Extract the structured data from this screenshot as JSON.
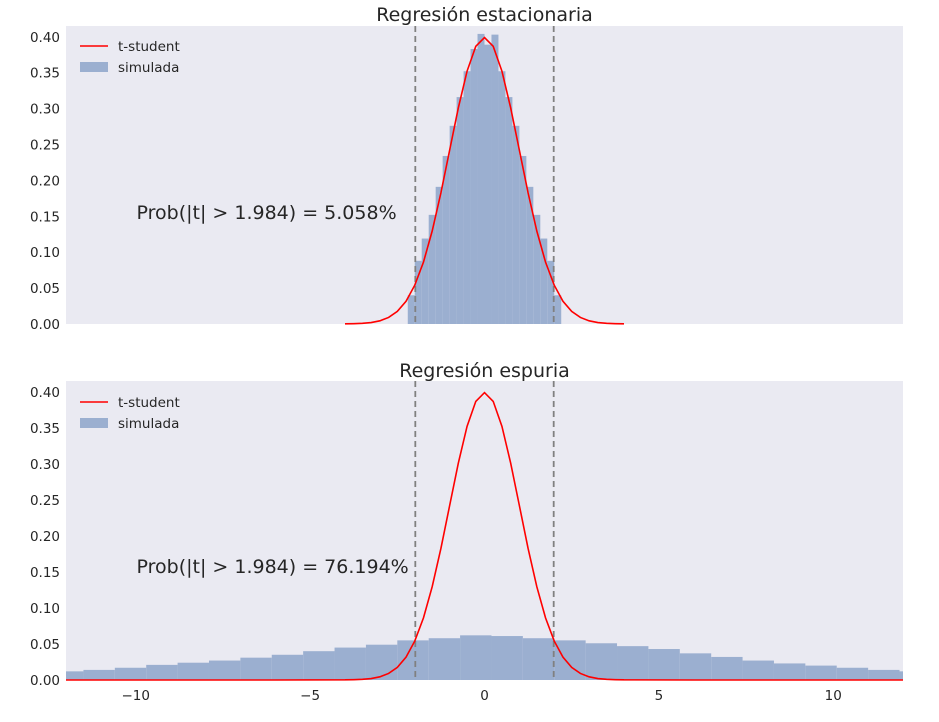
{
  "colors": {
    "axes_bg": "#eaeaf2",
    "hist": "#9bafd0",
    "t_student": "#ff0000",
    "critical_lines": "#808080"
  },
  "chart_data": [
    {
      "type": "histogram",
      "title": "Regresión estacionaria",
      "xlim": [
        -12,
        12
      ],
      "ylim": [
        0,
        0.415
      ],
      "yticks": [
        "0.00",
        "0.05",
        "0.10",
        "0.15",
        "0.20",
        "0.25",
        "0.30",
        "0.35",
        "0.40"
      ],
      "show_xticks": false,
      "grid": false,
      "legend": {
        "placement": "top-left",
        "entries": [
          "t-student",
          "simulada"
        ]
      },
      "critical_values": [
        -1.984,
        1.984
      ],
      "annotation": {
        "text": "Prob(|t| > 1.984) = 5.058%",
        "x": -10,
        "y": 0.15
      },
      "bins": [
        {
          "x0": -2.2,
          "x1": -2.0,
          "h": 0.04
        },
        {
          "x0": -2.0,
          "x1": -1.8,
          "h": 0.088
        },
        {
          "x0": -1.8,
          "x1": -1.6,
          "h": 0.119
        },
        {
          "x0": -1.6,
          "x1": -1.4,
          "h": 0.152
        },
        {
          "x0": -1.4,
          "x1": -1.2,
          "h": 0.191
        },
        {
          "x0": -1.2,
          "x1": -1.0,
          "h": 0.234
        },
        {
          "x0": -1.0,
          "x1": -0.8,
          "h": 0.276
        },
        {
          "x0": -0.8,
          "x1": -0.6,
          "h": 0.316
        },
        {
          "x0": -0.6,
          "x1": -0.4,
          "h": 0.352
        },
        {
          "x0": -0.4,
          "x1": -0.2,
          "h": 0.383
        },
        {
          "x0": -0.2,
          "x1": 0.0,
          "h": 0.404
        },
        {
          "x0": 0.0,
          "x1": 0.2,
          "h": 0.389
        },
        {
          "x0": 0.2,
          "x1": 0.4,
          "h": 0.403
        },
        {
          "x0": 0.4,
          "x1": 0.6,
          "h": 0.352
        },
        {
          "x0": 0.6,
          "x1": 0.8,
          "h": 0.316
        },
        {
          "x0": 0.8,
          "x1": 1.0,
          "h": 0.276
        },
        {
          "x0": 1.0,
          "x1": 1.2,
          "h": 0.234
        },
        {
          "x0": 1.2,
          "x1": 1.4,
          "h": 0.191
        },
        {
          "x0": 1.4,
          "x1": 1.6,
          "h": 0.152
        },
        {
          "x0": 1.6,
          "x1": 1.8,
          "h": 0.119
        },
        {
          "x0": 1.8,
          "x1": 2.0,
          "h": 0.088
        },
        {
          "x0": 2.0,
          "x1": 2.2,
          "h": 0.04
        }
      ],
      "t_curve": {
        "x": [
          -4,
          -3.75,
          -3.5,
          -3.25,
          -3.0,
          -2.75,
          -2.5,
          -2.25,
          -2.0,
          -1.75,
          -1.5,
          -1.25,
          -1.0,
          -0.75,
          -0.5,
          -0.25,
          0.0,
          0.25,
          0.5,
          0.75,
          1.0,
          1.25,
          1.5,
          1.75,
          2.0,
          2.25,
          2.5,
          2.75,
          3.0,
          3.25,
          3.5,
          3.75,
          4.0
        ],
        "y": [
          0.0002,
          0.0005,
          0.0009,
          0.002,
          0.0044,
          0.0091,
          0.0175,
          0.0317,
          0.054,
          0.0862,
          0.1295,
          0.1826,
          0.242,
          0.3011,
          0.3521,
          0.3867,
          0.3989,
          0.3867,
          0.3521,
          0.3011,
          0.242,
          0.1826,
          0.1295,
          0.0862,
          0.054,
          0.0317,
          0.0175,
          0.0091,
          0.0044,
          0.002,
          0.0009,
          0.0005,
          0.0002
        ]
      }
    },
    {
      "type": "histogram",
      "title": "Regresión espuria",
      "xlim": [
        -12,
        12
      ],
      "ylim": [
        0,
        0.415
      ],
      "yticks": [
        "0.00",
        "0.05",
        "0.10",
        "0.15",
        "0.20",
        "0.25",
        "0.30",
        "0.35",
        "0.40"
      ],
      "xticks": [
        "−10",
        "−5",
        "0",
        "5",
        "10"
      ],
      "xtick_values": [
        -10,
        -5,
        0,
        5,
        10
      ],
      "grid": false,
      "legend": {
        "placement": "top-left",
        "entries": [
          "t-student",
          "simulada"
        ]
      },
      "critical_values": [
        -1.984,
        1.984
      ],
      "annotation": {
        "text": "Prob(|t| > 1.984) = 76.194%",
        "x": -10,
        "y": 0.15
      },
      "bins": [
        {
          "x0": -12.0,
          "x1": -11.5,
          "h": 0.012
        },
        {
          "x0": -11.5,
          "x1": -10.6,
          "h": 0.014
        },
        {
          "x0": -10.6,
          "x1": -9.7,
          "h": 0.017
        },
        {
          "x0": -9.7,
          "x1": -8.8,
          "h": 0.021
        },
        {
          "x0": -8.8,
          "x1": -7.9,
          "h": 0.024
        },
        {
          "x0": -7.9,
          "x1": -7.0,
          "h": 0.027
        },
        {
          "x0": -7.0,
          "x1": -6.1,
          "h": 0.031
        },
        {
          "x0": -6.1,
          "x1": -5.2,
          "h": 0.035
        },
        {
          "x0": -5.2,
          "x1": -4.3,
          "h": 0.04
        },
        {
          "x0": -4.3,
          "x1": -3.4,
          "h": 0.045
        },
        {
          "x0": -3.4,
          "x1": -2.5,
          "h": 0.049
        },
        {
          "x0": -2.5,
          "x1": -1.6,
          "h": 0.055
        },
        {
          "x0": -1.6,
          "x1": -0.7,
          "h": 0.058
        },
        {
          "x0": -0.7,
          "x1": 0.2,
          "h": 0.062
        },
        {
          "x0": 0.2,
          "x1": 1.1,
          "h": 0.061
        },
        {
          "x0": 1.1,
          "x1": 2.0,
          "h": 0.058
        },
        {
          "x0": 2.0,
          "x1": 2.9,
          "h": 0.055
        },
        {
          "x0": 2.9,
          "x1": 3.8,
          "h": 0.051
        },
        {
          "x0": 3.8,
          "x1": 4.7,
          "h": 0.047
        },
        {
          "x0": 4.7,
          "x1": 5.6,
          "h": 0.043
        },
        {
          "x0": 5.6,
          "x1": 6.5,
          "h": 0.037
        },
        {
          "x0": 6.5,
          "x1": 7.4,
          "h": 0.032
        },
        {
          "x0": 7.4,
          "x1": 8.3,
          "h": 0.027
        },
        {
          "x0": 8.3,
          "x1": 9.2,
          "h": 0.023
        },
        {
          "x0": 9.2,
          "x1": 10.1,
          "h": 0.02
        },
        {
          "x0": 10.1,
          "x1": 11.0,
          "h": 0.017
        },
        {
          "x0": 11.0,
          "x1": 11.9,
          "h": 0.014
        },
        {
          "x0": 11.9,
          "x1": 12.0,
          "h": 0.012
        }
      ],
      "t_curve": {
        "x": [
          -12,
          -6,
          -4,
          -3.75,
          -3.5,
          -3.25,
          -3.0,
          -2.75,
          -2.5,
          -2.25,
          -2.0,
          -1.75,
          -1.5,
          -1.25,
          -1.0,
          -0.75,
          -0.5,
          -0.25,
          0.0,
          0.25,
          0.5,
          0.75,
          1.0,
          1.25,
          1.5,
          1.75,
          2.0,
          2.25,
          2.5,
          2.75,
          3.0,
          3.25,
          3.5,
          3.75,
          4.0,
          6,
          12
        ],
        "y": [
          0,
          1e-05,
          0.0002,
          0.0005,
          0.0009,
          0.002,
          0.0044,
          0.0091,
          0.0175,
          0.0317,
          0.054,
          0.0862,
          0.1295,
          0.1826,
          0.242,
          0.3011,
          0.3521,
          0.3867,
          0.3989,
          0.3867,
          0.3521,
          0.3011,
          0.242,
          0.1826,
          0.1295,
          0.0862,
          0.054,
          0.0317,
          0.0175,
          0.0091,
          0.0044,
          0.002,
          0.0009,
          0.0005,
          0.0002,
          1e-05,
          0
        ]
      }
    }
  ]
}
